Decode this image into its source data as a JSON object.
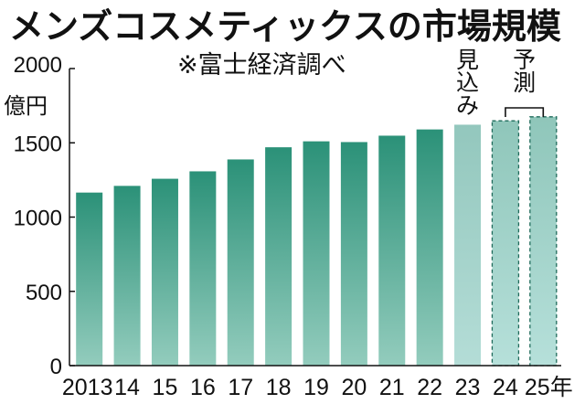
{
  "chart_data": {
    "type": "bar",
    "title": "メンズコスメティックスの市場規模",
    "subtitle": "※富士経済調べ",
    "ylabel": "億円",
    "ylim": [
      0,
      2000
    ],
    "yticks": [
      0,
      500,
      1000,
      1500,
      2000
    ],
    "grid": false,
    "categories": [
      "2013",
      "14",
      "15",
      "16",
      "17",
      "18",
      "19",
      "20",
      "21",
      "22",
      "23",
      "24",
      "25年"
    ],
    "values": [
      1165,
      1210,
      1258,
      1308,
      1388,
      1470,
      1510,
      1505,
      1548,
      1590,
      1622,
      1648,
      1675
    ],
    "status": [
      "actual",
      "actual",
      "actual",
      "actual",
      "actual",
      "actual",
      "actual",
      "actual",
      "actual",
      "actual",
      "estimate",
      "forecast",
      "forecast"
    ],
    "annotations": {
      "estimate": "見込み",
      "forecast": "予測"
    },
    "colors": {
      "actual_top": "#2b9178",
      "actual_bottom": "#93ccbd",
      "estimate": "#93c7bd",
      "forecast": "#8fc6ba"
    }
  }
}
